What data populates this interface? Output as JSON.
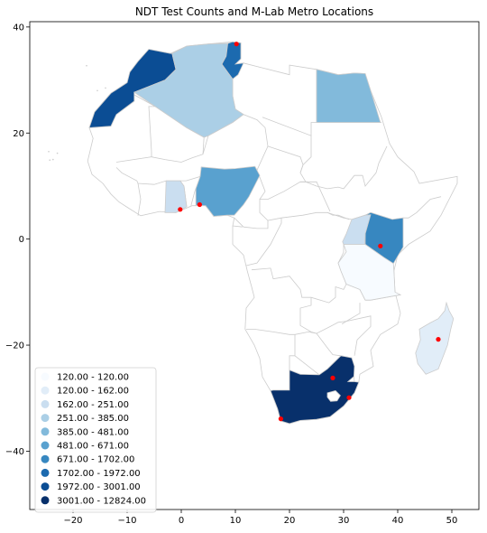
{
  "chart_data": {
    "type": "choropleth",
    "title": "NDT Test Counts and M-Lab Metro Locations",
    "xlim": [
      -28,
      55
    ],
    "ylim": [
      -51,
      41
    ],
    "x_ticks": [
      -20,
      -10,
      0,
      10,
      20,
      30,
      40,
      50
    ],
    "y_ticks": [
      40,
      20,
      0,
      -20,
      -40
    ],
    "legend_placement": "lower-left",
    "legend": [
      {
        "label": "120.00 - 120.00",
        "color": "#f7fbff"
      },
      {
        "label": "120.00 - 162.00",
        "color": "#e1edf8"
      },
      {
        "label": "162.00 - 251.00",
        "color": "#cadef0"
      },
      {
        "label": "251.00 - 385.00",
        "color": "#abcfe6"
      },
      {
        "label": "385.00 - 481.00",
        "color": "#82badb"
      },
      {
        "label": "481.00 - 671.00",
        "color": "#59a1cf"
      },
      {
        "label": "671.00 - 1702.00",
        "color": "#3787c0"
      },
      {
        "label": "1702.00 - 1972.00",
        "color": "#1c6aaf"
      },
      {
        "label": "1972.00 - 3001.00",
        "color": "#0b4d94"
      },
      {
        "label": "3001.00 - 12824.00",
        "color": "#08306b"
      }
    ],
    "metro_color": "#ff0000",
    "metros": [
      {
        "lon": 10.2,
        "lat": 36.8
      },
      {
        "lon": 3.4,
        "lat": 6.5
      },
      {
        "lon": -0.2,
        "lat": 5.6
      },
      {
        "lon": 36.8,
        "lat": -1.3
      },
      {
        "lon": 47.5,
        "lat": -18.9
      },
      {
        "lon": 28.0,
        "lat": -26.2
      },
      {
        "lon": 31.0,
        "lat": -29.9
      },
      {
        "lon": 18.4,
        "lat": -33.9
      }
    ]
  }
}
